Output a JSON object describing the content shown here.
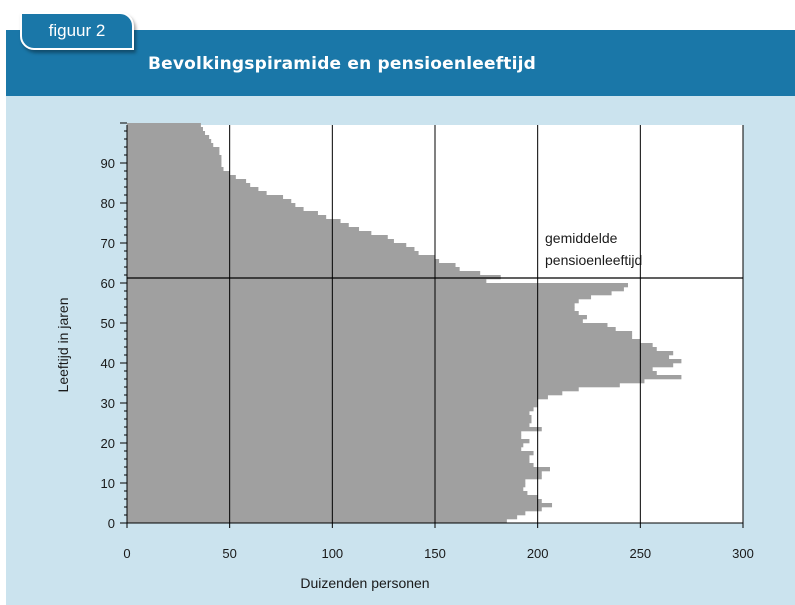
{
  "header": {
    "figure_label": "figuur 2",
    "title": "Bevolkingspiramide en pensioenleeftijd"
  },
  "colors": {
    "header": "#1a77a8",
    "panel": "#cbe3ee",
    "bars": "#a0a0a0"
  },
  "chart_data": {
    "type": "bar",
    "orientation": "horizontal",
    "xlabel": "Duizenden personen",
    "ylabel": "Leeftijd in jaren",
    "xlim": [
      0,
      300
    ],
    "ylim": [
      0,
      100
    ],
    "x_ticks": [
      0,
      50,
      100,
      150,
      200,
      250,
      300
    ],
    "y_ticks": [
      0,
      10,
      20,
      30,
      40,
      50,
      60,
      70,
      80,
      90
    ],
    "grid": "vertical",
    "ages": [
      0,
      1,
      2,
      3,
      4,
      5,
      6,
      7,
      8,
      9,
      10,
      11,
      12,
      13,
      14,
      15,
      16,
      17,
      18,
      19,
      20,
      21,
      22,
      23,
      24,
      25,
      26,
      27,
      28,
      29,
      30,
      31,
      32,
      33,
      34,
      35,
      36,
      37,
      38,
      39,
      40,
      41,
      42,
      43,
      44,
      45,
      46,
      47,
      48,
      49,
      50,
      51,
      52,
      53,
      54,
      55,
      56,
      57,
      58,
      59,
      60,
      61,
      62,
      63,
      64,
      65,
      66,
      67,
      68,
      69,
      70,
      71,
      72,
      73,
      74,
      75,
      76,
      77,
      78,
      79,
      80,
      81,
      82,
      83,
      84,
      85,
      86,
      87,
      88,
      89,
      90,
      91,
      92,
      93,
      94,
      95,
      96,
      97,
      98,
      99
    ],
    "values": [
      185,
      190,
      194,
      202,
      207,
      202,
      200,
      195,
      193,
      194,
      194,
      202,
      202,
      206,
      198,
      196,
      196,
      198,
      192,
      193,
      196,
      192,
      192,
      202,
      196,
      197,
      197,
      196,
      198,
      200,
      200,
      205,
      212,
      220,
      240,
      252,
      270,
      258,
      256,
      266,
      270,
      264,
      266,
      258,
      256,
      250,
      246,
      246,
      238,
      234,
      222,
      224,
      220,
      218,
      218,
      220,
      226,
      236,
      242,
      244,
      175,
      182,
      172,
      162,
      160,
      152,
      150,
      142,
      140,
      136,
      130,
      127,
      119,
      113,
      108,
      104,
      97,
      93,
      86,
      82,
      80,
      76,
      68,
      64,
      60,
      58,
      53,
      50,
      47,
      46,
      46,
      46,
      45,
      45,
      42,
      41,
      40,
      38,
      37,
      36
    ],
    "annotation": {
      "label_lines": [
        "gemiddelde",
        "pensioenleeftijd"
      ],
      "age": 61
    }
  }
}
